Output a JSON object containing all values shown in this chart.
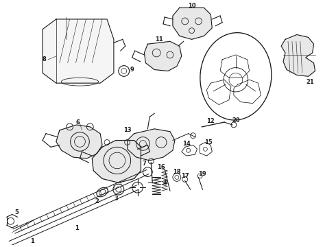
{
  "bg_color": "#ffffff",
  "fg_color": "#1a1a1a",
  "line_color": "#1a1a1a",
  "figsize": [
    4.9,
    3.6
  ],
  "dpi": 100
}
